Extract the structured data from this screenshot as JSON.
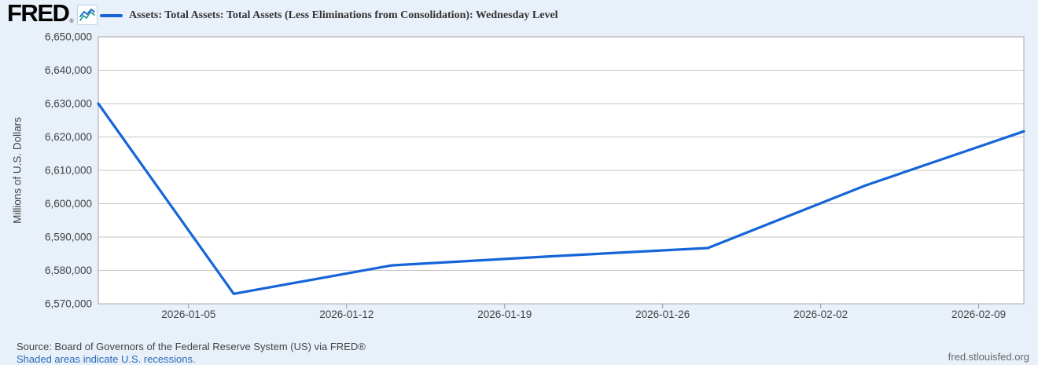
{
  "header": {
    "logo_text": "FRED",
    "registered_mark": "®",
    "legend": {
      "series_label": "Assets: Total Assets: Total Assets (Less Eliminations from Consolidation): Wednesday Level"
    }
  },
  "chart_data": {
    "type": "line",
    "title": "",
    "ylabel": "Millions of U.S. Dollars",
    "xlabel": "",
    "ylim": [
      6570000,
      6650000
    ],
    "y_tick_step": 10000,
    "y_ticks": [
      {
        "value": 6650000,
        "label": "6,650,000"
      },
      {
        "value": 6640000,
        "label": "6,640,000"
      },
      {
        "value": 6630000,
        "label": "6,630,000"
      },
      {
        "value": 6620000,
        "label": "6,620,000"
      },
      {
        "value": 6610000,
        "label": "6,610,000"
      },
      {
        "value": 6600000,
        "label": "6,600,000"
      },
      {
        "value": 6590000,
        "label": "6,590,000"
      },
      {
        "value": 6580000,
        "label": "6,580,000"
      },
      {
        "value": 6570000,
        "label": "6,570,000"
      }
    ],
    "x_range": [
      "2026-01-01",
      "2026-02-11"
    ],
    "x_ticks": [
      {
        "date": "2026-01-05",
        "label": "2026-01-05"
      },
      {
        "date": "2026-01-12",
        "label": "2026-01-12"
      },
      {
        "date": "2026-01-19",
        "label": "2026-01-19"
      },
      {
        "date": "2026-01-26",
        "label": "2026-01-26"
      },
      {
        "date": "2026-02-02",
        "label": "2026-02-02"
      },
      {
        "date": "2026-02-09",
        "label": "2026-02-09"
      }
    ],
    "grid": "horizontal",
    "legend_position": "top-left",
    "series": [
      {
        "name": "Assets: Total Assets: Total Assets (Less Eliminations from Consolidation): Wednesday Level",
        "color": "#1565d8",
        "points": [
          {
            "date": "2026-01-01",
            "value": 6630000
          },
          {
            "date": "2026-01-07",
            "value": 6573000
          },
          {
            "date": "2026-01-14",
            "value": 6581500
          },
          {
            "date": "2026-01-21",
            "value": 6584200
          },
          {
            "date": "2026-01-28",
            "value": 6586700
          },
          {
            "date": "2026-02-04",
            "value": 6605500
          },
          {
            "date": "2026-02-11",
            "value": 6621700
          }
        ]
      }
    ]
  },
  "footer": {
    "source_text": "Source: Board of Governors of the Federal Reserve System (US) via FRED®",
    "recession_note": "Shaded areas indicate U.S. recessions.",
    "site_url": "fred.stlouisfed.org"
  },
  "colors": {
    "page_background": "#e8f0f9",
    "plot_background": "#ffffff",
    "gridline": "#c6c6c6",
    "plot_border": "#a9a9a9",
    "tick_mark": "#999999",
    "axis_text": "#444444",
    "line": "#1565d8",
    "link": "#2a6bb5"
  }
}
